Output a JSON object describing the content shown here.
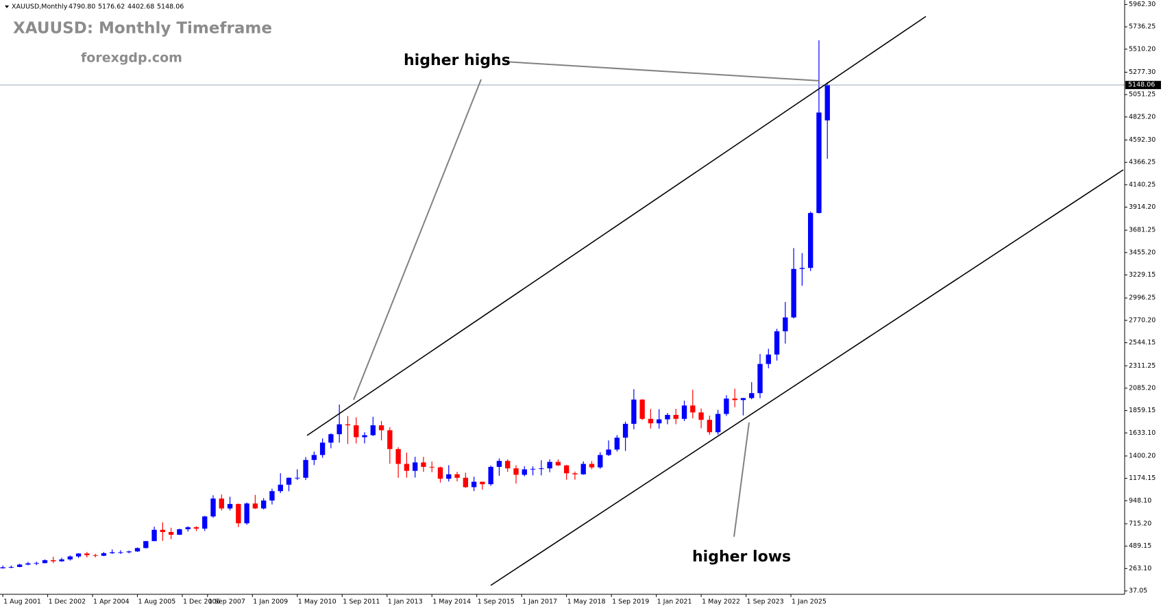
{
  "chart_data": {
    "type": "candlestick",
    "legend_text": "XAUUSD,Monthly",
    "ohlc": [
      4790.8,
      5176.62,
      4402.68,
      5148.06
    ],
    "ohlc_labels": [
      "4790.80",
      "5176.62",
      "4402.68",
      "5148.06"
    ],
    "title": "XAUUSD: Monthly Timeframe",
    "subtitle": "forexgdp.com",
    "annotations": [
      "higher highs",
      "higher lows"
    ],
    "up_color": "#0000ff",
    "down_color": "#ff0000",
    "grid": false,
    "x": [
      "2001-08-01",
      "2001-11-01",
      "2002-02-01",
      "2002-05-01",
      "2002-08-01",
      "2002-11-01",
      "2003-02-01",
      "2003-05-01",
      "2003-08-01",
      "2003-11-01",
      "2004-02-01",
      "2004-05-01",
      "2004-08-01",
      "2004-11-01",
      "2005-02-01",
      "2005-05-01",
      "2005-08-01",
      "2005-11-01",
      "2006-02-01",
      "2006-05-01",
      "2006-08-01",
      "2006-11-01",
      "2007-02-01",
      "2007-05-01",
      "2007-08-01",
      "2007-11-01",
      "2008-02-01",
      "2008-05-01",
      "2008-08-01",
      "2008-11-01",
      "2009-02-01",
      "2009-05-01",
      "2009-08-01",
      "2009-11-01",
      "2010-02-01",
      "2010-05-01",
      "2010-08-01",
      "2010-11-01",
      "2011-02-01",
      "2011-05-01",
      "2011-08-01",
      "2011-11-01",
      "2012-02-01",
      "2012-05-01",
      "2012-08-01",
      "2012-11-01",
      "2013-02-01",
      "2013-05-01",
      "2013-08-01",
      "2013-11-01",
      "2014-02-01",
      "2014-05-01",
      "2014-08-01",
      "2014-11-01",
      "2015-02-01",
      "2015-05-01",
      "2015-08-01",
      "2015-11-01",
      "2016-02-01",
      "2016-05-01",
      "2016-08-01",
      "2016-11-01",
      "2017-02-01",
      "2017-05-01",
      "2017-08-01",
      "2017-11-01",
      "2018-02-01",
      "2018-05-01",
      "2018-08-01",
      "2018-11-01",
      "2019-02-01",
      "2019-05-01",
      "2019-08-01",
      "2019-11-01",
      "2020-02-01",
      "2020-05-01",
      "2020-08-01",
      "2020-11-01",
      "2021-02-01",
      "2021-05-01",
      "2021-08-01",
      "2021-11-01",
      "2022-02-01",
      "2022-05-01",
      "2022-08-01",
      "2022-11-01",
      "2023-02-01",
      "2023-05-01",
      "2023-08-01",
      "2023-11-01",
      "2024-02-01",
      "2024-05-01",
      "2024-08-01",
      "2024-11-01",
      "2025-02-01",
      "2025-05-01",
      "2025-08-01",
      "2025-11-01",
      "2026-02-01"
    ],
    "open": [
      265,
      275,
      279,
      303,
      315,
      318,
      347,
      336,
      355,
      385,
      415,
      398,
      392,
      418,
      427,
      427,
      436,
      470,
      540,
      654,
      632,
      604,
      660,
      680,
      666,
      789,
      970,
      870,
      915,
      720,
      920,
      870,
      950,
      1045,
      1110,
      1180,
      1180,
      1360,
      1410,
      1535,
      1620,
      1720,
      1710,
      1590,
      1610,
      1710,
      1660,
      1470,
      1320,
      1250,
      1335,
      1290,
      1285,
      1170,
      1215,
      1180,
      1085,
      1140,
      1115,
      1290,
      1350,
      1275,
      1210,
      1265,
      1270,
      1275,
      1340,
      1305,
      1225,
      1215,
      1320,
      1285,
      1410,
      1465,
      1585,
      1725,
      1970,
      1775,
      1730,
      1770,
      1815,
      1775,
      1910,
      1840,
      1765,
      1640,
      1825,
      1980,
      1965,
      1985,
      2035,
      2330,
      2425,
      2660,
      2800,
      3290,
      3300,
      3855,
      4790.8
    ],
    "high": [
      293,
      292,
      312,
      330,
      332,
      355,
      382,
      372,
      395,
      417,
      430,
      412,
      430,
      456,
      447,
      444,
      475,
      542,
      686,
      730,
      675,
      665,
      690,
      691,
      795,
      1003,
      1011,
      988,
      920,
      930,
      1007,
      975,
      1070,
      1226,
      1182,
      1266,
      1390,
      1445,
      1577,
      1630,
      1920,
      1803,
      1791,
      1640,
      1796,
      1754,
      1690,
      1488,
      1434,
      1392,
      1392,
      1345,
      1293,
      1307,
      1240,
      1232,
      1191,
      1128,
      1303,
      1375,
      1366,
      1306,
      1296,
      1296,
      1357,
      1366,
      1365,
      1310,
      1243,
      1346,
      1349,
      1439,
      1557,
      1611,
      1747,
      2075,
      1973,
      1875,
      1873,
      1834,
      1877,
      1959,
      2070,
      1880,
      1808,
      1866,
      2014,
      2080,
      1987,
      2146,
      2431,
      2483,
      2685,
      2956,
      3500,
      3450,
      3870,
      5600,
      5176.62
    ],
    "low": [
      264,
      266,
      276,
      296,
      297,
      315,
      319,
      331,
      343,
      370,
      375,
      375,
      388,
      411,
      411,
      416,
      431,
      466,
      539,
      543,
      560,
      603,
      636,
      641,
      642,
      776,
      850,
      850,
      681,
      705,
      865,
      860,
      910,
      1025,
      1044,
      1157,
      1157,
      1308,
      1382,
      1478,
      1535,
      1522,
      1527,
      1527,
      1602,
      1558,
      1321,
      1180,
      1180,
      1182,
      1240,
      1236,
      1131,
      1142,
      1143,
      1077,
      1046,
      1060,
      1098,
      1200,
      1241,
      1122,
      1194,
      1204,
      1204,
      1236,
      1300,
      1160,
      1160,
      1210,
      1266,
      1270,
      1400,
      1445,
      1451,
      1670,
      1764,
      1677,
      1676,
      1721,
      1721,
      1753,
      1780,
      1680,
      1615,
      1616,
      1804,
      1893,
      1810,
      1973,
      1984,
      2286,
      2364,
      2536,
      2790,
      3120,
      3268,
      3850,
      4402.68
    ],
    "close": [
      275,
      279,
      303,
      315,
      318,
      347,
      336,
      355,
      385,
      415,
      398,
      392,
      418,
      427,
      427,
      436,
      470,
      540,
      654,
      632,
      604,
      660,
      680,
      666,
      789,
      970,
      870,
      915,
      720,
      920,
      870,
      950,
      1045,
      1110,
      1180,
      1180,
      1360,
      1410,
      1535,
      1620,
      1720,
      1710,
      1590,
      1610,
      1710,
      1660,
      1470,
      1320,
      1250,
      1335,
      1290,
      1285,
      1170,
      1215,
      1180,
      1085,
      1140,
      1115,
      1290,
      1350,
      1275,
      1210,
      1265,
      1270,
      1275,
      1340,
      1305,
      1225,
      1215,
      1320,
      1285,
      1410,
      1465,
      1585,
      1725,
      1970,
      1775,
      1730,
      1770,
      1815,
      1775,
      1910,
      1840,
      1765,
      1640,
      1825,
      1980,
      1965,
      1985,
      2035,
      2330,
      2425,
      2660,
      2800,
      3290,
      3300,
      3855,
      4870,
      5148.06
    ],
    "xlim": [
      "2001-07-01",
      "2034-12-01"
    ],
    "xticks": [
      {
        "value": "2001-08-01",
        "label": "1 Aug 2001"
      },
      {
        "value": "2002-12-01",
        "label": "1 Dec 2002"
      },
      {
        "value": "2004-04-01",
        "label": "1 Apr 2004"
      },
      {
        "value": "2005-08-01",
        "label": "1 Aug 2005"
      },
      {
        "value": "2006-12-01",
        "label": "1 Dec 2006"
      },
      {
        "value": "2007-09-01",
        "label": "1 Sep 2007"
      },
      {
        "value": "2009-01-01",
        "label": "1 Jan 2009"
      },
      {
        "value": "2010-05-01",
        "label": "1 May 2010"
      },
      {
        "value": "2011-09-01",
        "label": "1 Sep 2011"
      },
      {
        "value": "2013-01-01",
        "label": "1 Jan 2013"
      },
      {
        "value": "2014-05-01",
        "label": "1 May 2014"
      },
      {
        "value": "2015-09-01",
        "label": "1 Sep 2015"
      },
      {
        "value": "2017-01-01",
        "label": "1 Jan 2017"
      },
      {
        "value": "2018-05-01",
        "label": "1 May 2018"
      },
      {
        "value": "2019-09-01",
        "label": "1 Sep 2019"
      },
      {
        "value": "2021-01-01",
        "label": "1 Jan 2021"
      },
      {
        "value": "2022-05-01",
        "label": "1 May 2022"
      },
      {
        "value": "2023-09-01",
        "label": "1 Sep 2023"
      },
      {
        "value": "2025-01-01",
        "label": "1 Jan 2025"
      }
    ],
    "ylim": [
      2.5,
      6007
    ],
    "yticks": [
      {
        "value": 37.05,
        "label": "37.05"
      },
      {
        "value": 263.1,
        "label": "263.10"
      },
      {
        "value": 489.15,
        "label": "489.15"
      },
      {
        "value": 715.2,
        "label": "715.20"
      },
      {
        "value": 948.1,
        "label": "948.10"
      },
      {
        "value": 1174.15,
        "label": "1174.15"
      },
      {
        "value": 1400.2,
        "label": "1400.20"
      },
      {
        "value": 1633.1,
        "label": "1633.10"
      },
      {
        "value": 1859.15,
        "label": "1859.15"
      },
      {
        "value": 2085.2,
        "label": "2085.20"
      },
      {
        "value": 2311.25,
        "label": "2311.25"
      },
      {
        "value": 2544.15,
        "label": "2544.15"
      },
      {
        "value": 2770.2,
        "label": "2770.20"
      },
      {
        "value": 2996.25,
        "label": "2996.25"
      },
      {
        "value": 3229.15,
        "label": "3229.15"
      },
      {
        "value": 3455.2,
        "label": "3455.20"
      },
      {
        "value": 3681.25,
        "label": "3681.25"
      },
      {
        "value": 3914.2,
        "label": "3914.20"
      },
      {
        "value": 4140.25,
        "label": "4140.25"
      },
      {
        "value": 4366.25,
        "label": "4366.25"
      },
      {
        "value": 4592.3,
        "label": "4592.30"
      },
      {
        "value": 4825.2,
        "label": "4825.20"
      },
      {
        "value": 5051.25,
        "label": "5051.25"
      },
      {
        "value": 5277.3,
        "label": "5277.30"
      },
      {
        "value": 5510.2,
        "label": "5510.20"
      },
      {
        "value": 5736.25,
        "label": "5736.25"
      },
      {
        "value": 5962.3,
        "label": "5962.30"
      }
    ]
  }
}
